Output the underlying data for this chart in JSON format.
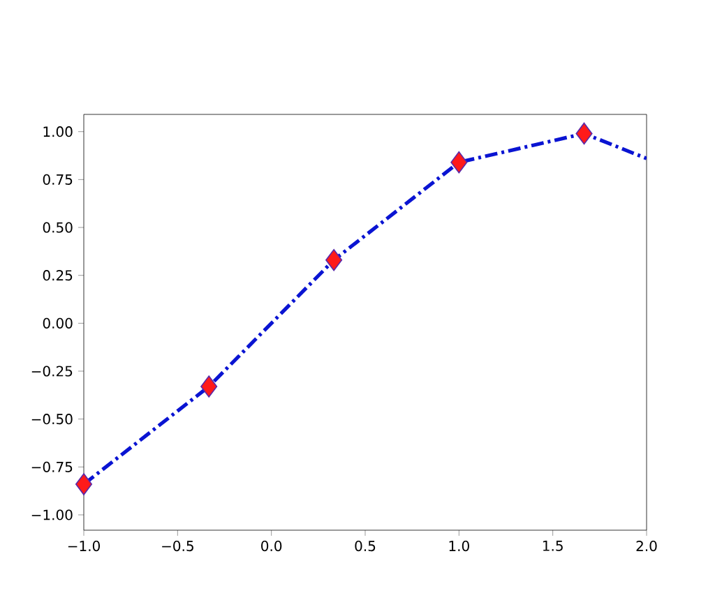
{
  "chart_data": {
    "type": "line",
    "series": [
      {
        "color": "#0a14d2",
        "line_style": "dashdot",
        "marker": "none",
        "x": [
          -1,
          -0.333,
          0.333,
          1,
          1.667,
          2
        ],
        "values": [
          -0.84,
          -0.33,
          0.33,
          0.84,
          0.99,
          0.86
        ]
      },
      {
        "type": "scatter",
        "color": "#ff1a1a",
        "marker": "diamond",
        "x": [
          -1,
          -0.333,
          0.333,
          1,
          1.667
        ],
        "values": [
          -0.84,
          -0.33,
          0.33,
          0.84,
          0.99
        ]
      }
    ],
    "xlim": [
      -1,
      2
    ],
    "ylim": [
      -1.08,
      1.09
    ],
    "xticks": [
      {
        "value": -1,
        "label": "−1.0"
      },
      {
        "value": -0.5,
        "label": "−0.5"
      },
      {
        "value": 0,
        "label": "0.0"
      },
      {
        "value": 0.5,
        "label": "0.5"
      },
      {
        "value": 1,
        "label": "1.0"
      },
      {
        "value": 1.5,
        "label": "1.5"
      },
      {
        "value": 2,
        "label": "2.0"
      }
    ],
    "yticks": [
      {
        "value": -1,
        "label": "−1.00"
      },
      {
        "value": -0.75,
        "label": "−0.75"
      },
      {
        "value": -0.5,
        "label": "−0.50"
      },
      {
        "value": -0.25,
        "label": "−0.25"
      },
      {
        "value": 0,
        "label": "0.00"
      },
      {
        "value": 0.25,
        "label": "0.25"
      },
      {
        "value": 0.5,
        "label": "0.50"
      },
      {
        "value": 0.75,
        "label": "0.75"
      },
      {
        "value": 1,
        "label": "1.00"
      }
    ],
    "grid": false
  }
}
